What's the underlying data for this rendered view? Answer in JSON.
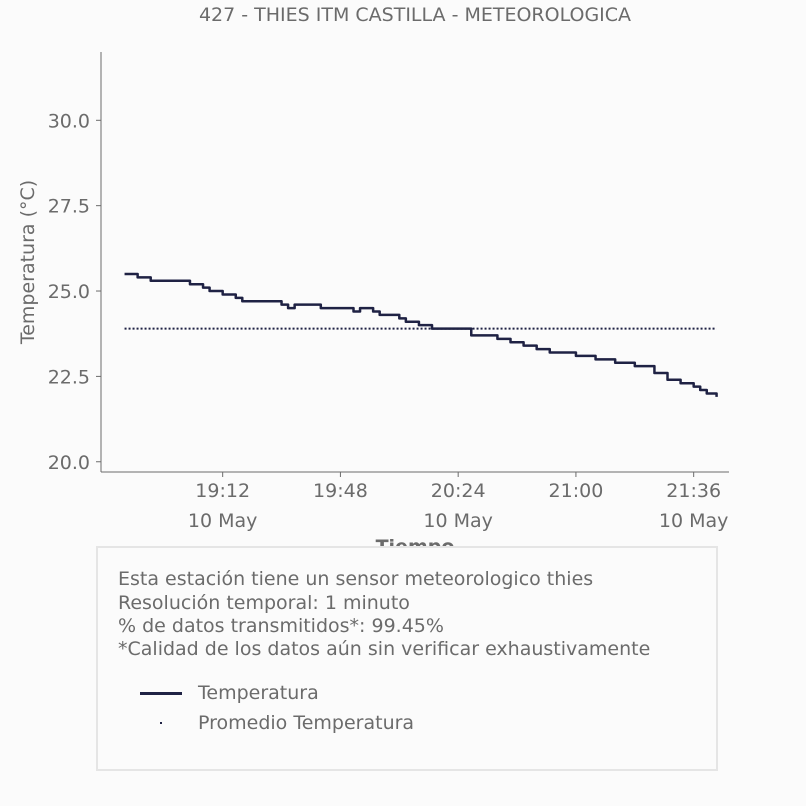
{
  "chart_data": {
    "type": "line",
    "title": "427 - THIES ITM CASTILLA - METEOROLOGICA",
    "xlabel": "Tiempo",
    "ylabel": "Temperatura (°C)",
    "ylim": [
      19.7,
      32.0
    ],
    "yticks": [
      "20.0",
      "22.5",
      "25.0",
      "27.5",
      "30.0"
    ],
    "xlim_minutes": [
      18.58,
      21.78
    ],
    "xticks": [
      {
        "time": "19:12",
        "date": "10 May"
      },
      {
        "time": "19:48",
        "date": ""
      },
      {
        "time": "20:24",
        "date": "10 May"
      },
      {
        "time": "21:00",
        "date": ""
      },
      {
        "time": "21:36",
        "date": "10 May"
      }
    ],
    "series": [
      {
        "name": "Temperatura",
        "color": "#1f2244",
        "x": [
          "18:42",
          "18:44",
          "18:46",
          "18:48",
          "18:50",
          "18:55",
          "18:58",
          "19:02",
          "19:06",
          "19:08",
          "19:12",
          "19:16",
          "19:18",
          "19:24",
          "19:30",
          "19:32",
          "19:34",
          "19:35",
          "19:42",
          "19:48",
          "19:52",
          "19:54",
          "19:58",
          "20:00",
          "20:06",
          "20:08",
          "20:10",
          "20:12",
          "20:16",
          "20:18",
          "20:24",
          "20:28",
          "20:30",
          "20:36",
          "20:40",
          "20:44",
          "20:48",
          "20:52",
          "20:56",
          "21:00",
          "21:06",
          "21:12",
          "21:18",
          "21:24",
          "21:28",
          "21:32",
          "21:36",
          "21:38",
          "21:40",
          "21:42",
          "21:43"
        ],
        "values": [
          25.5,
          25.5,
          25.4,
          25.4,
          25.3,
          25.3,
          25.3,
          25.2,
          25.1,
          25.0,
          24.9,
          24.8,
          24.7,
          24.7,
          24.6,
          24.5,
          24.6,
          24.6,
          24.5,
          24.5,
          24.4,
          24.5,
          24.4,
          24.3,
          24.2,
          24.1,
          24.1,
          24.0,
          23.9,
          23.9,
          23.9,
          23.7,
          23.7,
          23.6,
          23.5,
          23.4,
          23.3,
          23.2,
          23.2,
          23.1,
          23.0,
          22.9,
          22.8,
          22.6,
          22.4,
          22.3,
          22.2,
          22.1,
          22.0,
          22.0,
          21.9
        ]
      },
      {
        "name": "Promedio Temperatura",
        "color": "#1f2244",
        "style": "dotted",
        "x": [
          "18:42",
          "21:43"
        ],
        "values": [
          23.9,
          23.9
        ]
      }
    ],
    "grid": false,
    "legend_position": "below"
  },
  "info": {
    "line1": "Esta estación tiene un sensor meteorologico thies",
    "line2": "Resolución temporal: 1 minuto",
    "line3": "% de datos transmitidos*: 99.45%",
    "line4": "*Calidad de los datos aún sin verificar exhaustivamente"
  },
  "legend": {
    "item1": "Temperatura",
    "item2": "Promedio Temperatura"
  }
}
